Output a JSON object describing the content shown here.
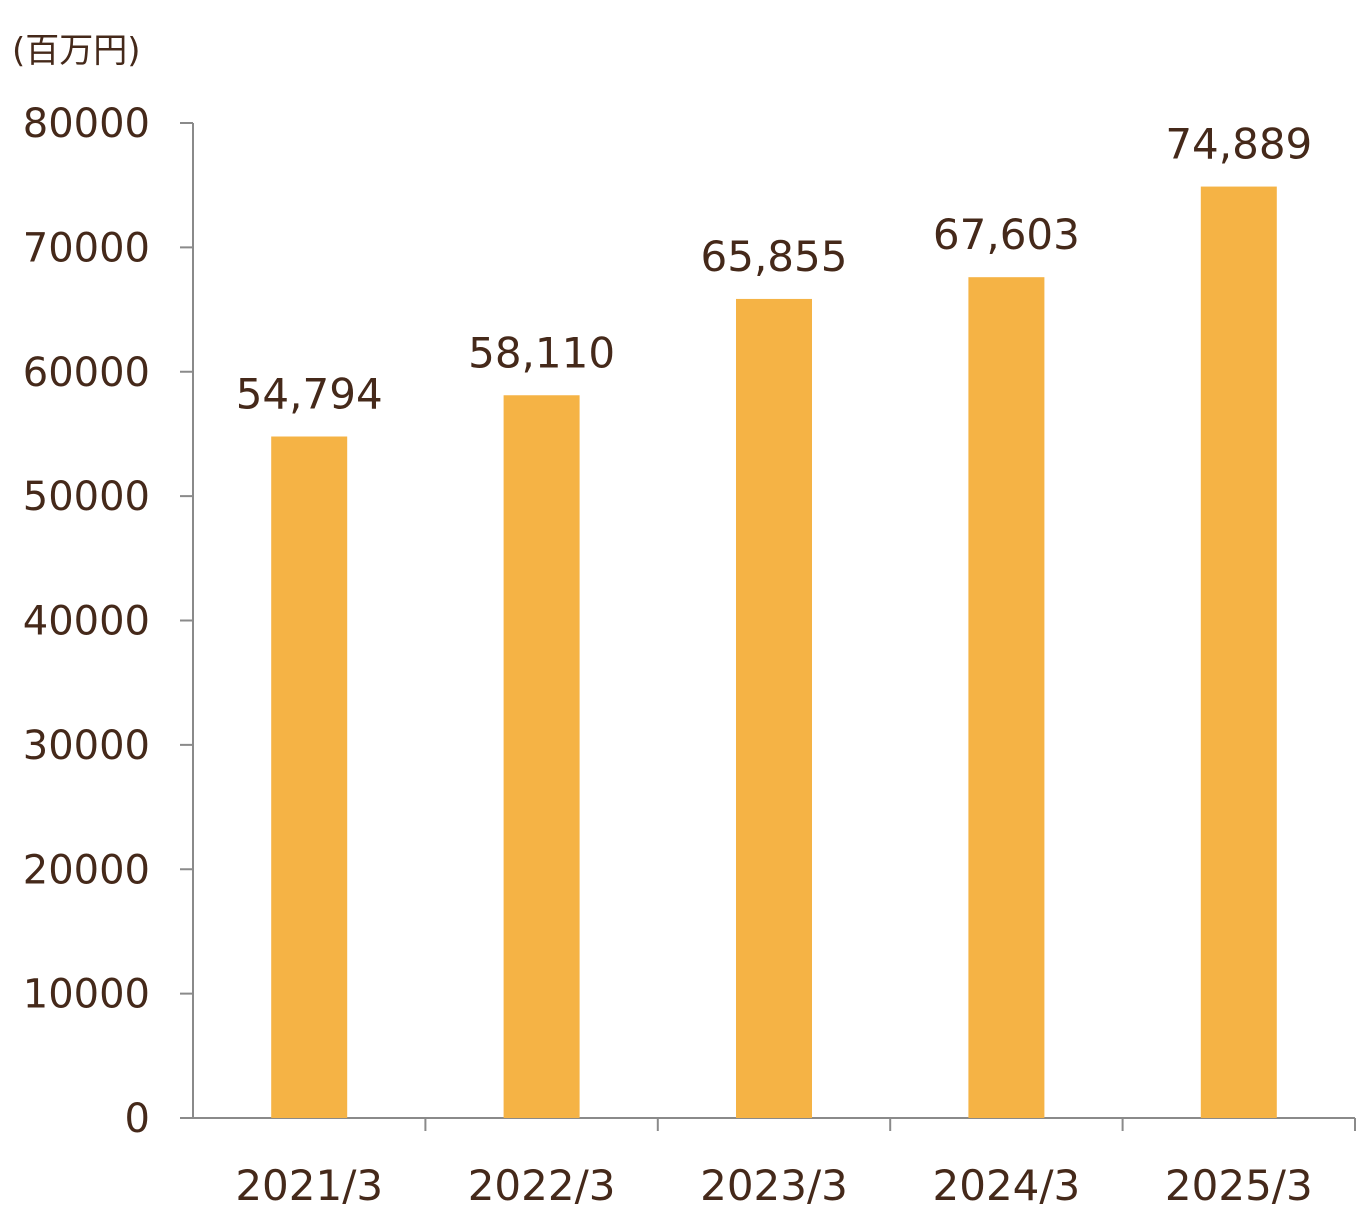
{
  "chart_data": {
    "type": "bar",
    "unit_label": "(百万円)",
    "categories": [
      "2021/3",
      "2022/3",
      "2023/3",
      "2024/3",
      "2025/3"
    ],
    "values": [
      54794,
      58110,
      65855,
      67603,
      74889
    ],
    "data_labels": [
      "54,794",
      "58,110",
      "65,855",
      "67,603",
      "74,889"
    ],
    "yticks": [
      "0",
      "10000",
      "20000",
      "30000",
      "40000",
      "50000",
      "60000",
      "70000",
      "80000"
    ],
    "ylim": [
      0,
      80000
    ],
    "title": "",
    "xlabel": "",
    "ylabel": "(百万円)",
    "grid": false,
    "colors": {
      "bar": "#F5B345",
      "axis": "#8A8A8A",
      "text": "#45291A"
    }
  }
}
